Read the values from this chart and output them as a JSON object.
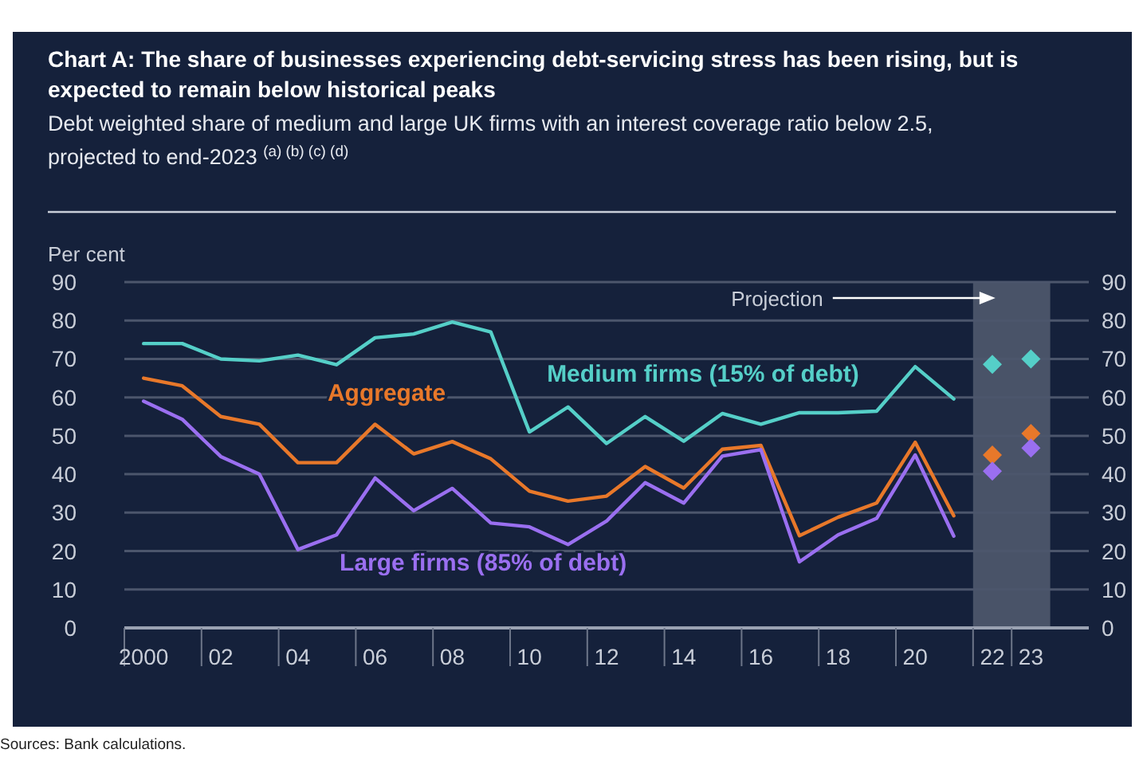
{
  "chart_data": {
    "type": "line",
    "title": "Chart A: The share of businesses experiencing debt-servicing stress has been rising, but is expected to remain below historical peaks",
    "subtitle": "Debt weighted share of medium and large UK firms with an interest coverage ratio below 2.5, projected to end-2023 $^{(a) (b) (c) (d)}$",
    "ylabel": "Per cent",
    "annotations": [
      "Sources: Bank calculations."
    ],
    "x": [
      2000,
      2001,
      2002,
      2003,
      2004,
      2005,
      2006,
      2007,
      2008,
      2009,
      2010,
      2011,
      2012,
      2013,
      2014,
      2015,
      2016,
      2017,
      2018,
      2019,
      2020,
      2021,
      2022,
      2023
    ],
    "series": [
      {
        "name": "Medium firms (15% of debt)",
        "color": "#55cfc8",
        "values": [
          74,
          74,
          70,
          69.5,
          71,
          68.5,
          75.5,
          76.5,
          79.6,
          77,
          51,
          57.5,
          48,
          55,
          48.6,
          55.8,
          53,
          56,
          56,
          56.4,
          68,
          59.6,
          null,
          null
        ]
      },
      {
        "name": "Aggregate",
        "color": "#e8782a",
        "values": [
          65,
          63,
          55,
          53,
          43,
          43,
          53,
          45.3,
          48.5,
          44,
          35.6,
          33,
          34.3,
          42,
          36.4,
          46.5,
          47.5,
          24,
          28.8,
          32.5,
          48.3,
          29.2,
          null,
          null
        ]
      },
      {
        "name": "Large firms (85% of debt)",
        "color": "#9a6ff0",
        "values": [
          59,
          54.3,
          44.6,
          40,
          20.4,
          24.2,
          39,
          30.5,
          36.3,
          27.3,
          26.3,
          21.7,
          27.8,
          37.8,
          32.5,
          44.7,
          46.4,
          17.2,
          24.2,
          28.5,
          45,
          23.9,
          null,
          null
        ]
      },
      {
        "type": "scatter",
        "marker": "diamond",
        "color": "#55cfc8",
        "values": [
          null,
          null,
          null,
          null,
          null,
          null,
          null,
          null,
          null,
          null,
          null,
          null,
          null,
          null,
          null,
          null,
          null,
          null,
          null,
          null,
          null,
          null,
          68.6,
          70
        ]
      },
      {
        "type": "scatter",
        "marker": "diamond",
        "color": "#e8782a",
        "values": [
          null,
          null,
          null,
          null,
          null,
          null,
          null,
          null,
          null,
          null,
          null,
          null,
          null,
          null,
          null,
          null,
          null,
          null,
          null,
          null,
          null,
          null,
          45,
          50.6
        ]
      },
      {
        "type": "scatter",
        "marker": "diamond",
        "color": "#9a6ff0",
        "values": [
          null,
          null,
          null,
          null,
          null,
          null,
          null,
          null,
          null,
          null,
          null,
          null,
          null,
          null,
          null,
          null,
          null,
          null,
          null,
          null,
          null,
          null,
          40.8,
          46.8
        ]
      }
    ],
    "xlim": [
      1999.5,
      2024.5
    ],
    "xticks": [
      {
        "value": 2000,
        "label": "2000"
      },
      {
        "value": 2002,
        "label": "02"
      },
      {
        "value": 2004,
        "label": "04"
      },
      {
        "value": 2006,
        "label": "06"
      },
      {
        "value": 2008,
        "label": "08"
      },
      {
        "value": 2010,
        "label": "10"
      },
      {
        "value": 2012,
        "label": "12"
      },
      {
        "value": 2014,
        "label": "14"
      },
      {
        "value": 2016,
        "label": "16"
      },
      {
        "value": 2018,
        "label": "18"
      },
      {
        "value": 2020,
        "label": "20"
      },
      {
        "value": 2022,
        "label": "22"
      },
      {
        "value": 2023,
        "label": "23"
      }
    ],
    "ylim": [
      0,
      90
    ],
    "yticks": [
      0,
      10,
      20,
      30,
      40,
      50,
      60,
      70,
      80,
      90
    ],
    "y2lim": [
      0,
      90
    ],
    "y2ticks": [
      0,
      10,
      20,
      30,
      40,
      50,
      60,
      70,
      80,
      90
    ],
    "bands": [
      {
        "axis": "x",
        "from": 2021.5,
        "to": 2023.5,
        "label": "Projection",
        "color": "#5b6478"
      }
    ],
    "grid": "y",
    "legend": false,
    "marker": "none",
    "line_style": "solid"
  }
}
